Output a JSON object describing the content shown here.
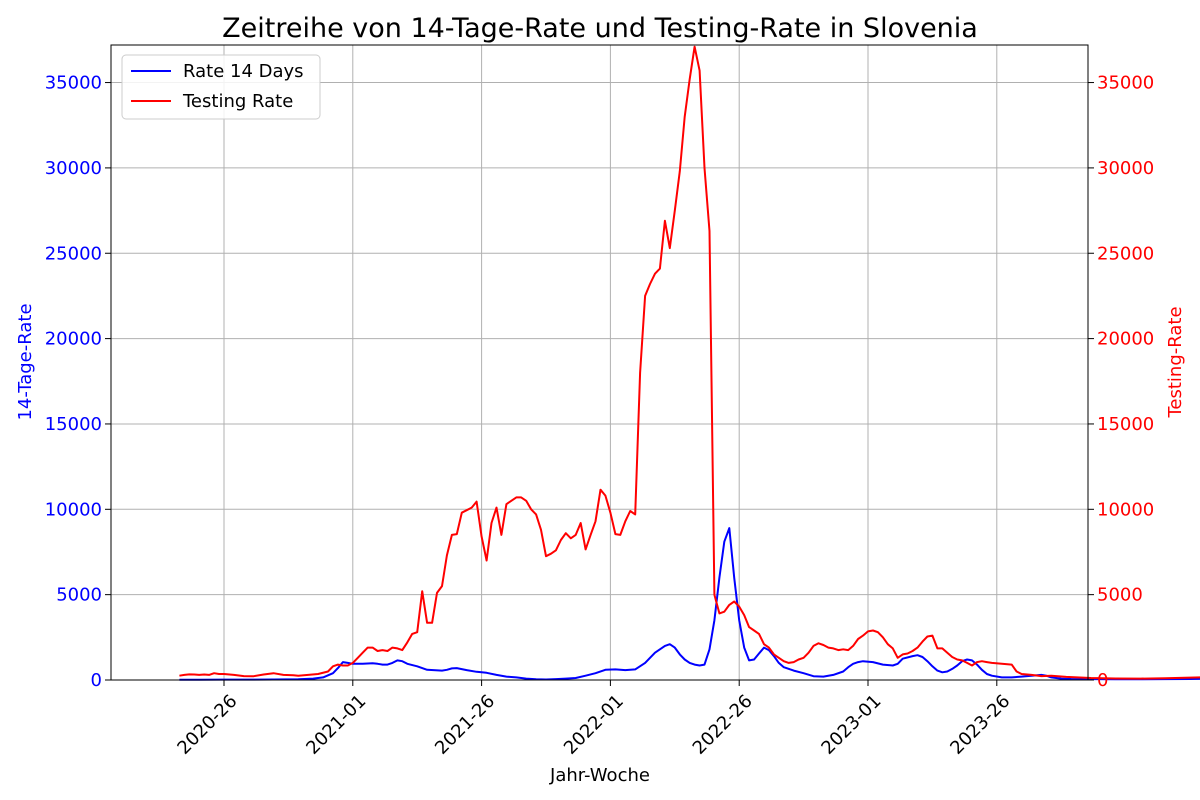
{
  "chart_data": {
    "type": "line",
    "title": "Zeitreihe von 14-Tage-Rate und Testing-Rate in Slovenia",
    "xlabel": "Jahr-Woche",
    "ylabel_left": "14-Tage-Rate",
    "ylabel_right": "Testing-Rate",
    "x_ticks": [
      "2020-26",
      "2021-01",
      "2021-26",
      "2022-01",
      "2022-26",
      "2023-01",
      "2023-26"
    ],
    "y_ticks": [
      "0",
      "5000",
      "10000",
      "15000",
      "20000",
      "25000",
      "30000",
      "35000"
    ],
    "ylim_left": [
      0,
      37200
    ],
    "ylim_right": [
      0,
      37200
    ],
    "grid": true,
    "legend_position": "top-left",
    "colors": {
      "left_axis": "#0000ff",
      "right_axis": "#ff0000",
      "grid": "#b0b0b0"
    },
    "series": [
      {
        "name": "Rate 14 Days",
        "axis": "left",
        "color": "#0000ff",
        "points": [
          [
            -9,
            20
          ],
          [
            -5,
            20
          ],
          [
            0,
            25
          ],
          [
            5,
            25
          ],
          [
            10,
            30
          ],
          [
            15,
            40
          ],
          [
            18,
            80
          ],
          [
            20,
            150
          ],
          [
            22,
            400
          ],
          [
            23,
            700
          ],
          [
            24,
            1050
          ],
          [
            25,
            1000
          ],
          [
            26,
            950
          ],
          [
            28,
            950
          ],
          [
            30,
            980
          ],
          [
            31,
            950
          ],
          [
            32,
            900
          ],
          [
            33,
            900
          ],
          [
            34,
            1000
          ],
          [
            35,
            1150
          ],
          [
            36,
            1100
          ],
          [
            37,
            950
          ],
          [
            39,
            800
          ],
          [
            41,
            600
          ],
          [
            44,
            550
          ],
          [
            45,
            600
          ],
          [
            46,
            680
          ],
          [
            47,
            700
          ],
          [
            49,
            580
          ],
          [
            51,
            480
          ],
          [
            53,
            420
          ],
          [
            55,
            300
          ],
          [
            57,
            200
          ],
          [
            59,
            150
          ],
          [
            61,
            80
          ],
          [
            63,
            40
          ],
          [
            65,
            30
          ],
          [
            67,
            50
          ],
          [
            69,
            80
          ],
          [
            71,
            120
          ],
          [
            73,
            250
          ],
          [
            75,
            400
          ],
          [
            77,
            600
          ],
          [
            79,
            620
          ],
          [
            81,
            580
          ],
          [
            83,
            620
          ],
          [
            85,
            1000
          ],
          [
            87,
            1600
          ],
          [
            89,
            2000
          ],
          [
            90,
            2100
          ],
          [
            91,
            1900
          ],
          [
            92,
            1500
          ],
          [
            93,
            1200
          ],
          [
            94,
            1000
          ],
          [
            95,
            900
          ],
          [
            96,
            850
          ],
          [
            97,
            900
          ],
          [
            98,
            1800
          ],
          [
            99,
            3500
          ],
          [
            100,
            6000
          ],
          [
            101,
            8100
          ],
          [
            102,
            8900
          ],
          [
            103,
            6000
          ],
          [
            104,
            3500
          ],
          [
            105,
            1900
          ],
          [
            106,
            1150
          ],
          [
            107,
            1200
          ],
          [
            108,
            1550
          ],
          [
            109,
            1900
          ],
          [
            110,
            1750
          ],
          [
            111,
            1400
          ],
          [
            112,
            1000
          ],
          [
            113,
            750
          ],
          [
            115,
            550
          ],
          [
            117,
            400
          ],
          [
            119,
            220
          ],
          [
            121,
            200
          ],
          [
            123,
            300
          ],
          [
            125,
            500
          ],
          [
            126,
            750
          ],
          [
            127,
            950
          ],
          [
            128,
            1050
          ],
          [
            129,
            1100
          ],
          [
            131,
            1050
          ],
          [
            133,
            900
          ],
          [
            135,
            850
          ],
          [
            136,
            950
          ],
          [
            137,
            1250
          ],
          [
            139,
            1400
          ],
          [
            140,
            1450
          ],
          [
            141,
            1350
          ],
          [
            142,
            1100
          ],
          [
            143,
            800
          ],
          [
            144,
            550
          ],
          [
            145,
            450
          ],
          [
            146,
            500
          ],
          [
            147,
            650
          ],
          [
            148,
            850
          ],
          [
            149,
            1100
          ],
          [
            150,
            1200
          ],
          [
            151,
            1150
          ],
          [
            152,
            900
          ],
          [
            153,
            600
          ],
          [
            154,
            350
          ],
          [
            155,
            250
          ],
          [
            157,
            150
          ],
          [
            159,
            150
          ],
          [
            161,
            200
          ],
          [
            163,
            250
          ],
          [
            165,
            300
          ],
          [
            166,
            250
          ],
          [
            167,
            150
          ],
          [
            169,
            80
          ],
          [
            171,
            60
          ],
          [
            175,
            50
          ],
          [
            180,
            40
          ],
          [
            185,
            40
          ],
          [
            190,
            50
          ],
          [
            195,
            60
          ],
          [
            200,
            70
          ],
          [
            203,
            80
          ]
        ]
      },
      {
        "name": "Testing Rate",
        "axis": "right",
        "color": "#ff0000",
        "points": [
          [
            -9,
            250
          ],
          [
            -8,
            300
          ],
          [
            -7,
            330
          ],
          [
            -6,
            320
          ],
          [
            -5,
            300
          ],
          [
            -4,
            320
          ],
          [
            -3,
            300
          ],
          [
            -2,
            400
          ],
          [
            -1,
            350
          ],
          [
            0,
            350
          ],
          [
            2,
            300
          ],
          [
            4,
            230
          ],
          [
            6,
            220
          ],
          [
            8,
            320
          ],
          [
            10,
            400
          ],
          [
            12,
            300
          ],
          [
            14,
            280
          ],
          [
            15,
            250
          ],
          [
            17,
            300
          ],
          [
            19,
            350
          ],
          [
            21,
            500
          ],
          [
            22,
            800
          ],
          [
            23,
            900
          ],
          [
            24,
            850
          ],
          [
            25,
            850
          ],
          [
            26,
            1000
          ],
          [
            27,
            1300
          ],
          [
            28,
            1600
          ],
          [
            29,
            1900
          ],
          [
            30,
            1900
          ],
          [
            31,
            1700
          ],
          [
            32,
            1750
          ],
          [
            33,
            1700
          ],
          [
            34,
            1900
          ],
          [
            35,
            1850
          ],
          [
            36,
            1750
          ],
          [
            37,
            2200
          ],
          [
            38,
            2700
          ],
          [
            39,
            2800
          ],
          [
            40,
            5200
          ],
          [
            41,
            3350
          ],
          [
            42,
            3350
          ],
          [
            43,
            5100
          ],
          [
            44,
            5500
          ],
          [
            45,
            7300
          ],
          [
            46,
            8500
          ],
          [
            47,
            8550
          ],
          [
            48,
            9800
          ],
          [
            49,
            9950
          ],
          [
            50,
            10100
          ],
          [
            51,
            10450
          ],
          [
            52,
            8400
          ],
          [
            53,
            7000
          ],
          [
            54,
            9200
          ],
          [
            55,
            10100
          ],
          [
            56,
            8500
          ],
          [
            57,
            10300
          ],
          [
            58,
            10500
          ],
          [
            59,
            10700
          ],
          [
            60,
            10700
          ],
          [
            61,
            10500
          ],
          [
            62,
            10000
          ],
          [
            63,
            9700
          ],
          [
            64,
            8800
          ],
          [
            65,
            7250
          ],
          [
            66,
            7400
          ],
          [
            67,
            7600
          ],
          [
            68,
            8200
          ],
          [
            69,
            8600
          ],
          [
            70,
            8300
          ],
          [
            71,
            8500
          ],
          [
            72,
            9200
          ],
          [
            73,
            7650
          ],
          [
            74,
            8500
          ],
          [
            75,
            9300
          ],
          [
            76,
            11150
          ],
          [
            77,
            10800
          ],
          [
            78,
            9800
          ],
          [
            79,
            8550
          ],
          [
            80,
            8500
          ],
          [
            81,
            9300
          ],
          [
            82,
            9900
          ],
          [
            83,
            9700
          ],
          [
            84,
            18000
          ],
          [
            85,
            22500
          ],
          [
            86,
            23200
          ],
          [
            87,
            23800
          ],
          [
            88,
            24100
          ],
          [
            89,
            26900
          ],
          [
            90,
            25300
          ],
          [
            91,
            27500
          ],
          [
            92,
            29800
          ],
          [
            93,
            33000
          ],
          [
            94,
            35200
          ],
          [
            95,
            37100
          ],
          [
            96,
            35700
          ],
          [
            97,
            30000
          ],
          [
            98,
            26300
          ],
          [
            99,
            5000
          ],
          [
            100,
            3900
          ],
          [
            101,
            4000
          ],
          [
            102,
            4400
          ],
          [
            103,
            4600
          ],
          [
            104,
            4300
          ],
          [
            105,
            3800
          ],
          [
            106,
            3100
          ],
          [
            107,
            2900
          ],
          [
            108,
            2700
          ],
          [
            109,
            2100
          ],
          [
            110,
            1900
          ],
          [
            111,
            1500
          ],
          [
            112,
            1300
          ],
          [
            113,
            1100
          ],
          [
            114,
            1000
          ],
          [
            115,
            1050
          ],
          [
            116,
            1200
          ],
          [
            117,
            1300
          ],
          [
            118,
            1600
          ],
          [
            119,
            2000
          ],
          [
            120,
            2150
          ],
          [
            121,
            2050
          ],
          [
            122,
            1900
          ],
          [
            123,
            1850
          ],
          [
            124,
            1750
          ],
          [
            125,
            1800
          ],
          [
            126,
            1750
          ],
          [
            127,
            2000
          ],
          [
            128,
            2400
          ],
          [
            129,
            2600
          ],
          [
            130,
            2850
          ],
          [
            131,
            2900
          ],
          [
            132,
            2800
          ],
          [
            133,
            2500
          ],
          [
            134,
            2100
          ],
          [
            135,
            1850
          ],
          [
            136,
            1300
          ],
          [
            137,
            1500
          ],
          [
            138,
            1550
          ],
          [
            139,
            1700
          ],
          [
            140,
            1900
          ],
          [
            141,
            2250
          ],
          [
            142,
            2550
          ],
          [
            143,
            2600
          ],
          [
            144,
            1850
          ],
          [
            145,
            1850
          ],
          [
            146,
            1600
          ],
          [
            147,
            1350
          ],
          [
            148,
            1200
          ],
          [
            149,
            1150
          ],
          [
            150,
            1000
          ],
          [
            151,
            850
          ],
          [
            152,
            1050
          ],
          [
            153,
            1100
          ],
          [
            154,
            1050
          ],
          [
            155,
            1000
          ],
          [
            157,
            950
          ],
          [
            159,
            900
          ],
          [
            160,
            500
          ],
          [
            161,
            350
          ],
          [
            163,
            300
          ],
          [
            165,
            230
          ],
          [
            167,
            250
          ],
          [
            170,
            180
          ],
          [
            175,
            120
          ],
          [
            180,
            90
          ],
          [
            185,
            80
          ],
          [
            190,
            100
          ],
          [
            195,
            140
          ],
          [
            198,
            160
          ],
          [
            200,
            120
          ],
          [
            203,
            150
          ]
        ]
      }
    ]
  }
}
